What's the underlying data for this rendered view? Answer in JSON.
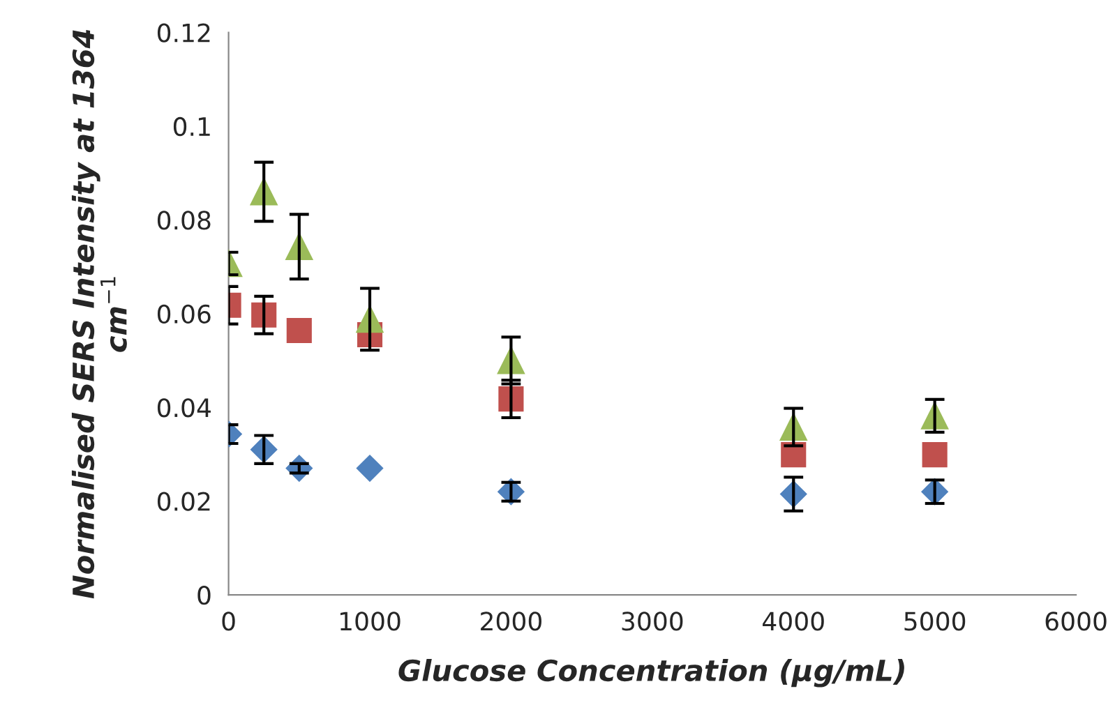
{
  "chart_data": {
    "type": "scatter",
    "xlabel": "Glucose Concentration (µg/mL)",
    "ylabel": "Normalised SERS Intensity at 1364 cm$^{−1}$",
    "x": [
      0,
      250,
      500,
      1000,
      2000,
      4000,
      5000
    ],
    "series": [
      {
        "color": "#4f81bd",
        "marker": "diamond",
        "values": [
          0.0343,
          0.031,
          0.027,
          0.027,
          0.022,
          0.0215,
          0.022
        ],
        "errors": [
          0.002,
          0.003,
          0.001,
          null,
          0.002,
          0.0036,
          0.0025
        ]
      },
      {
        "color": "#c0504d",
        "marker": "square",
        "values": [
          0.0618,
          0.0597,
          0.0564,
          0.0555,
          0.0418,
          0.0299,
          0.0299
        ],
        "errors": [
          0.004,
          0.004,
          null,
          null,
          0.004,
          null,
          null
        ]
      },
      {
        "color": "#9bbb59",
        "marker": "triangle",
        "values": [
          0.0707,
          0.086,
          0.0743,
          0.0588,
          0.05,
          0.0358,
          0.0382
        ],
        "errors": [
          0.0024,
          0.0063,
          0.0069,
          0.0066,
          0.005,
          0.004,
          0.0035
        ]
      }
    ],
    "xlim": [
      0,
      6000
    ],
    "xticks": [
      0,
      1000,
      2000,
      3000,
      4000,
      5000,
      6000
    ],
    "ylim": [
      0,
      0.12
    ],
    "yticks": [
      0,
      0.02,
      0.04,
      0.06,
      0.08,
      0.1,
      0.12
    ],
    "grid": false,
    "legend": false
  }
}
